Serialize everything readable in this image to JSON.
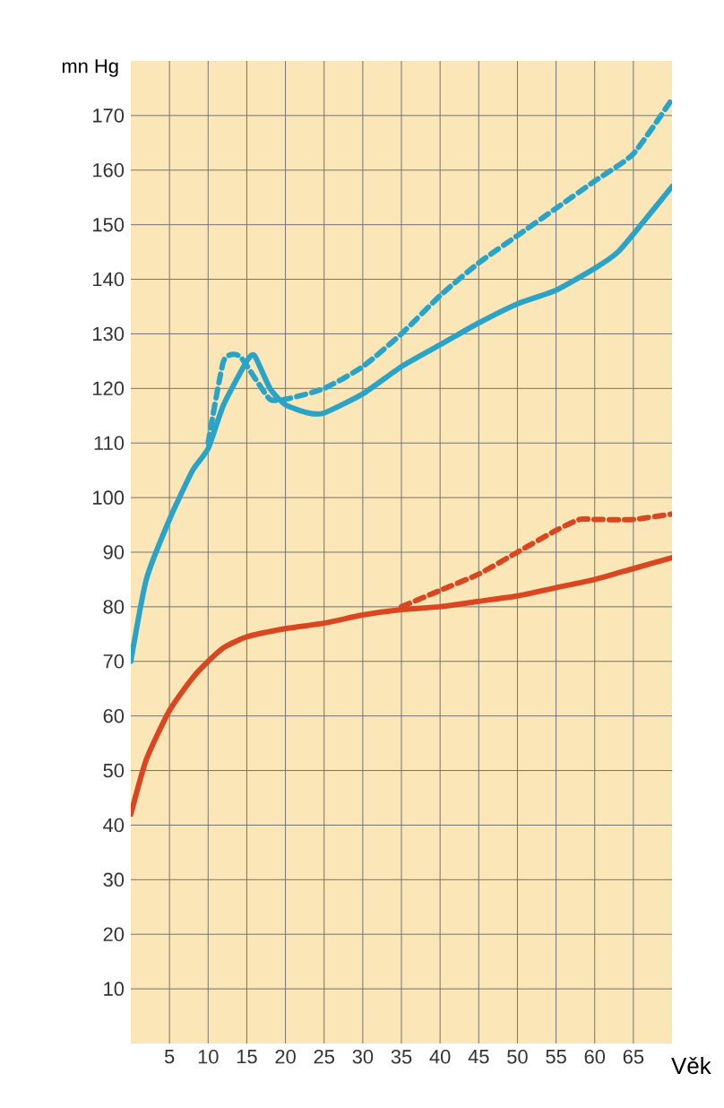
{
  "chart_data": {
    "type": "line",
    "xlabel": "Věk",
    "ylabel": "mn Hg",
    "xlim": [
      0,
      70
    ],
    "ylim": [
      0,
      180
    ],
    "xticks": [
      5,
      10,
      15,
      20,
      25,
      30,
      35,
      40,
      45,
      50,
      55,
      60,
      65
    ],
    "yticks": [
      10,
      20,
      30,
      40,
      50,
      60,
      70,
      80,
      90,
      100,
      110,
      120,
      130,
      140,
      150,
      160,
      170
    ],
    "grid": true,
    "series": [
      {
        "color": "#2aa3c8",
        "line_style": "solid",
        "x": [
          0,
          2,
          5,
          8,
          10,
          12,
          15,
          16,
          18,
          20,
          23,
          25,
          30,
          35,
          40,
          45,
          50,
          55,
          60,
          63,
          66,
          70
        ],
        "values": [
          70,
          85,
          96,
          105,
          109,
          117,
          125,
          126,
          120,
          117,
          115.5,
          115.5,
          119,
          124,
          128,
          132,
          135.5,
          138,
          142,
          145,
          150,
          157
        ]
      },
      {
        "color": "#2aa3c8",
        "line_style": "dashed",
        "x": [
          10,
          12,
          14,
          16,
          18,
          20,
          25,
          30,
          35,
          40,
          45,
          50,
          55,
          60,
          65,
          70
        ],
        "values": [
          110,
          125,
          126,
          122,
          118,
          118,
          120,
          124,
          130,
          137,
          143,
          148,
          153,
          158,
          163,
          173
        ]
      },
      {
        "color": "#d9461f",
        "line_style": "solid",
        "x": [
          0,
          2,
          5,
          8,
          10,
          12,
          15,
          20,
          25,
          30,
          35,
          40,
          45,
          50,
          55,
          60,
          65,
          70
        ],
        "values": [
          42,
          52,
          61,
          67,
          70,
          72.5,
          74.5,
          76,
          77,
          78.5,
          79.5,
          80,
          81,
          82,
          83.5,
          85,
          87,
          89
        ]
      },
      {
        "color": "#d9461f",
        "line_style": "dashed",
        "x": [
          35,
          40,
          45,
          50,
          55,
          58,
          60,
          65,
          70
        ],
        "values": [
          80,
          83,
          86,
          90,
          94,
          96,
          96,
          96,
          97
        ]
      }
    ]
  }
}
